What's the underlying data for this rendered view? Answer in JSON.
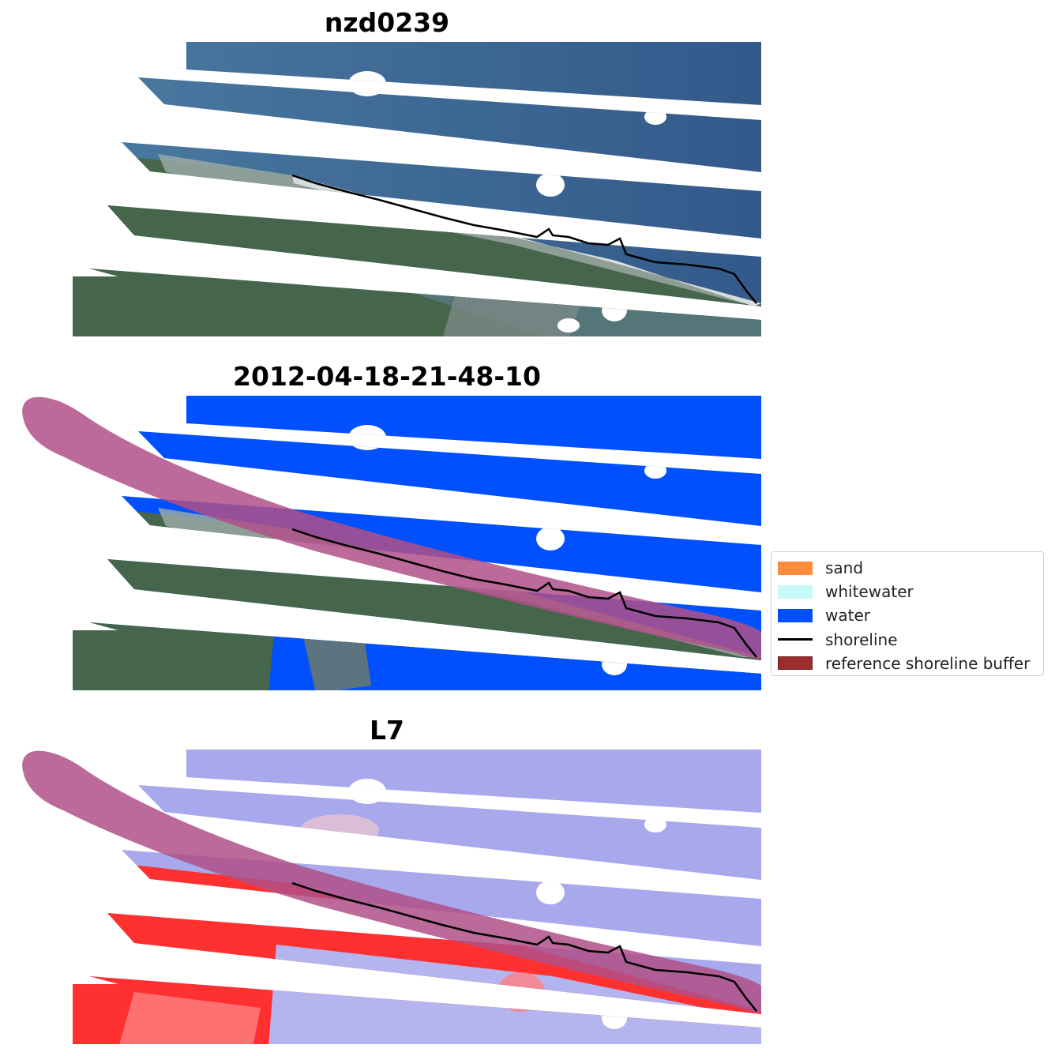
{
  "panels": [
    {
      "title": "nzd0239",
      "kind": "rgb"
    },
    {
      "title": "2012-04-18-21-48-10",
      "kind": "classified"
    },
    {
      "title": "L7",
      "kind": "index"
    }
  ],
  "legend": {
    "items": [
      {
        "label": "sand",
        "color": "#ff8c3a",
        "type": "patch"
      },
      {
        "label": "whitewater",
        "color": "#c8fafa",
        "type": "patch"
      },
      {
        "label": "water",
        "color": "#0050ff",
        "type": "patch"
      },
      {
        "label": "shoreline",
        "color": "#000000",
        "type": "line"
      },
      {
        "label": "reference shoreline buffer",
        "color": "#9b2d2d",
        "type": "patch"
      }
    ]
  },
  "colors": {
    "sea_rgb": "#3b6494",
    "land_rgb": "#47684e",
    "beach_rgb": "#c9cfd0",
    "water_class": "#0050ff",
    "buffer": "#b46090",
    "index_water": "#a8a8ec",
    "index_land": "#ff2020",
    "shoreline": "#000000"
  }
}
